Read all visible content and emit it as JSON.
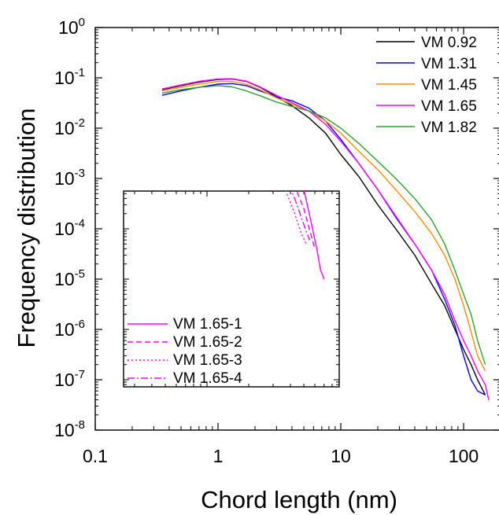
{
  "chart_data": [
    {
      "type": "line",
      "xlabel": "Chord length (nm)",
      "ylabel": "Frequency distribution",
      "xscale": "log",
      "yscale": "log",
      "xlim": [
        0.1,
        200
      ],
      "ylim": [
        1e-08,
        1
      ],
      "x_ticks": [
        {
          "value": 0.1,
          "label": "0.1"
        },
        {
          "value": 1,
          "label": "1"
        },
        {
          "value": 10,
          "label": "10"
        },
        {
          "value": 100,
          "label": "100"
        }
      ],
      "y_ticks": [
        {
          "value": 1,
          "base": "10",
          "exp": "0"
        },
        {
          "value": 0.1,
          "base": "10",
          "exp": "-1"
        },
        {
          "value": 0.01,
          "base": "10",
          "exp": "-2"
        },
        {
          "value": 0.001,
          "base": "10",
          "exp": "-3"
        },
        {
          "value": 0.0001,
          "base": "10",
          "exp": "-4"
        },
        {
          "value": 1e-05,
          "base": "10",
          "exp": "-5"
        },
        {
          "value": 1e-06,
          "base": "10",
          "exp": "-6"
        },
        {
          "value": 1e-07,
          "base": "10",
          "exp": "-7"
        },
        {
          "value": 1e-08,
          "base": "10",
          "exp": "-8"
        }
      ],
      "legend_position": "top-right",
      "grid": false,
      "series": [
        {
          "name": "VM 0.92",
          "color": "#000000",
          "x": [
            0.35,
            0.5,
            0.7,
            1.0,
            1.3,
            1.7,
            2.2,
            3.0,
            4.0,
            5.5,
            7.5,
            10,
            14,
            20,
            28,
            40,
            55,
            70,
            85,
            100,
            115,
            130,
            150
          ],
          "y": [
            0.058,
            0.07,
            0.082,
            0.093,
            0.095,
            0.085,
            0.065,
            0.042,
            0.028,
            0.016,
            0.008,
            0.003,
            0.0011,
            0.0003,
            0.0001,
            3e-05,
            8e-06,
            3e-06,
            1e-06,
            4e-07,
            2e-07,
            1e-07,
            5e-08
          ]
        },
        {
          "name": "VM 1.31",
          "color": "#0000ff",
          "x": [
            0.35,
            0.5,
            0.7,
            1.0,
            1.3,
            1.7,
            2.2,
            3.0,
            4.0,
            5.5,
            7.5,
            10,
            14,
            20,
            28,
            40,
            55,
            70,
            85,
            100,
            115,
            130,
            150
          ],
          "y": [
            0.045,
            0.055,
            0.065,
            0.075,
            0.077,
            0.07,
            0.055,
            0.042,
            0.035,
            0.025,
            0.014,
            0.006,
            0.002,
            0.0006,
            0.00017,
            5e-05,
            1.5e-05,
            4e-06,
            1.2e-06,
            3e-07,
            1e-07,
            6e-08,
            5e-08
          ]
        },
        {
          "name": "VM 1.45",
          "color": "#ff8c00",
          "x": [
            0.35,
            0.5,
            0.7,
            1.0,
            1.3,
            1.7,
            2.2,
            3.0,
            4.0,
            5.5,
            7.5,
            10,
            14,
            20,
            28,
            40,
            55,
            70,
            85,
            100,
            115,
            130,
            150
          ],
          "y": [
            0.055,
            0.065,
            0.075,
            0.085,
            0.085,
            0.075,
            0.058,
            0.04,
            0.03,
            0.022,
            0.014,
            0.008,
            0.0035,
            0.0015,
            0.0006,
            0.00022,
            8e-05,
            3e-05,
            1e-05,
            3e-06,
            9e-07,
            3e-07,
            1.5e-07
          ]
        },
        {
          "name": "VM 1.65",
          "color": "#ff00ff",
          "x": [
            0.35,
            0.5,
            0.7,
            1.0,
            1.3,
            1.7,
            2.2,
            3.0,
            4.0,
            5.5,
            7.5,
            10,
            14,
            20,
            28,
            40,
            55,
            70,
            85,
            100,
            115,
            130,
            150,
            160
          ],
          "y": [
            0.06,
            0.072,
            0.085,
            0.095,
            0.096,
            0.086,
            0.066,
            0.045,
            0.032,
            0.022,
            0.012,
            0.0055,
            0.002,
            0.0006,
            0.00018,
            5e-05,
            1.5e-05,
            5e-06,
            1.5e-06,
            6e-07,
            3e-07,
            1.5e-07,
            8e-08,
            4e-08
          ]
        },
        {
          "name": "VM 1.82",
          "color": "#2ca02c",
          "x": [
            0.35,
            0.5,
            0.7,
            1.0,
            1.3,
            1.7,
            2.2,
            3.0,
            4.0,
            5.5,
            7.5,
            10,
            14,
            20,
            28,
            40,
            55,
            70,
            85,
            100,
            115,
            130,
            150
          ],
          "y": [
            0.05,
            0.058,
            0.065,
            0.07,
            0.066,
            0.055,
            0.044,
            0.033,
            0.027,
            0.022,
            0.016,
            0.01,
            0.005,
            0.0022,
            0.001,
            0.0004,
            0.00015,
            5e-05,
            1.5e-05,
            5e-06,
            2e-06,
            6e-07,
            2e-07
          ]
        }
      ]
    },
    {
      "type": "line",
      "xscale": "log",
      "yscale": "log",
      "xlim": [
        0.25,
        9
      ],
      "ylim": [
        1e-08,
        1
      ],
      "legend_position": "bottom-left",
      "y_ticks": [
        {
          "value": 0.0001,
          "base": "10",
          "exp": "-4"
        },
        {
          "value": 1e-05,
          "base": "10",
          "exp": "-5"
        },
        {
          "value": 1e-06,
          "base": "10",
          "exp": "-6"
        },
        {
          "value": 1e-07,
          "base": "10",
          "exp": "-7"
        }
      ],
      "series": [
        {
          "name": "VM 1.65-1",
          "color": "#ff00ff",
          "dash": "solid",
          "x": [
            0.3,
            0.4,
            0.55,
            0.7,
            0.9,
            1.1,
            1.4,
            1.7,
            2.0,
            2.5,
            3.0,
            3.6,
            4.3,
            5.0,
            5.6,
            6.2,
            6.6,
            7.0
          ],
          "y": [
            0.065,
            0.078,
            0.088,
            0.09,
            0.087,
            0.08,
            0.07,
            0.062,
            0.05,
            0.03,
            0.015,
            0.006,
            0.002,
            0.0006,
            0.00015,
            4e-05,
            1.5e-05,
            1e-05
          ]
        },
        {
          "name": "VM 1.65-2",
          "color": "#ff00ff",
          "dash": "dashed",
          "x": [
            0.3,
            0.4,
            0.55,
            0.7,
            0.9,
            1.1,
            1.4,
            1.7,
            2.0,
            2.5,
            3.0,
            3.6,
            4.3,
            5.0,
            5.6,
            6.0
          ],
          "y": [
            0.09,
            0.105,
            0.12,
            0.125,
            0.11,
            0.09,
            0.07,
            0.05,
            0.033,
            0.015,
            0.006,
            0.002,
            0.0007,
            0.00025,
            8e-05,
            4e-05
          ]
        },
        {
          "name": "VM 1.65-3",
          "color": "#ff00ff",
          "dash": "dotted",
          "x": [
            0.3,
            0.4,
            0.55,
            0.7,
            0.9,
            1.1,
            1.4,
            1.7,
            2.0,
            2.5,
            3.0,
            3.6,
            4.3,
            4.8,
            5.2
          ],
          "y": [
            0.13,
            0.15,
            0.16,
            0.15,
            0.12,
            0.09,
            0.06,
            0.035,
            0.02,
            0.008,
            0.0025,
            0.0007,
            0.0002,
            8e-05,
            5e-05
          ]
        },
        {
          "name": "VM 1.65-4",
          "color": "#ff00ff",
          "dash": "dashdot",
          "x": [
            0.3,
            0.4,
            0.55,
            0.7,
            0.9,
            1.1,
            1.4,
            1.7,
            2.0,
            2.5,
            3.0,
            3.6,
            4.3,
            5.0,
            5.5
          ],
          "y": [
            0.11,
            0.13,
            0.145,
            0.14,
            0.115,
            0.09,
            0.065,
            0.045,
            0.028,
            0.012,
            0.004,
            0.0012,
            0.0004,
            0.00012,
            6e-05
          ]
        }
      ]
    }
  ]
}
